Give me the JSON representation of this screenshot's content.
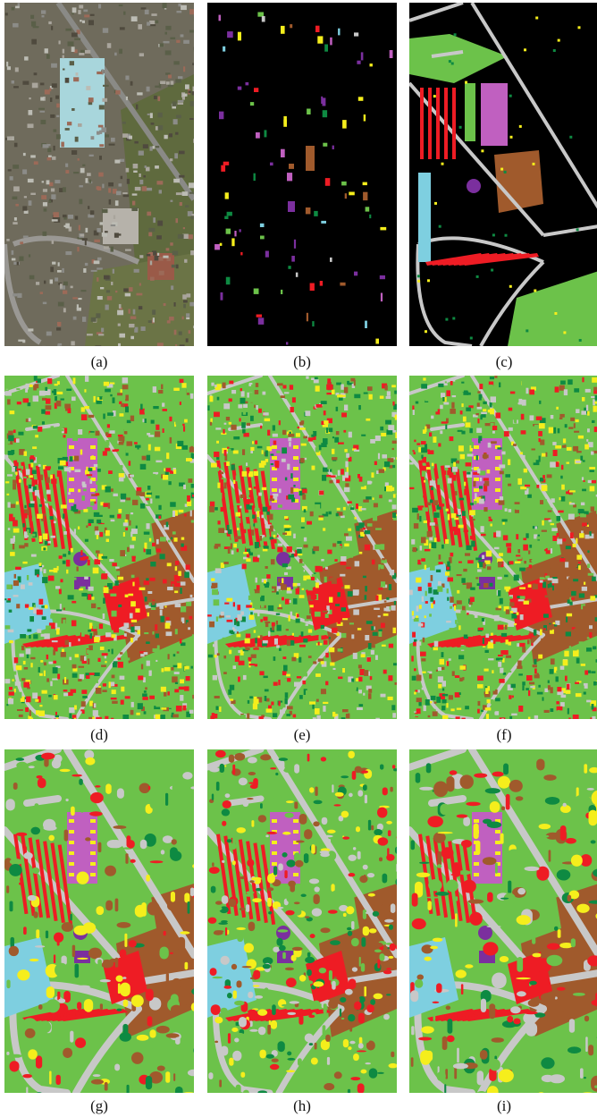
{
  "figure": {
    "panels": [
      {
        "id": "a",
        "label": "(a)",
        "kind": "rgb-image"
      },
      {
        "id": "b",
        "label": "(b)",
        "kind": "ground-truth-sparse"
      },
      {
        "id": "c",
        "label": "(c)",
        "kind": "ground-truth-full"
      },
      {
        "id": "d",
        "label": "(d)",
        "kind": "classification-map"
      },
      {
        "id": "e",
        "label": "(e)",
        "kind": "classification-map"
      },
      {
        "id": "f",
        "label": "(f)",
        "kind": "classification-map"
      },
      {
        "id": "g",
        "label": "(g)",
        "kind": "classification-map-smooth"
      },
      {
        "id": "h",
        "label": "(h)",
        "kind": "classification-map-smooth"
      },
      {
        "id": "i",
        "label": "(i)",
        "kind": "classification-map-smooth"
      }
    ]
  },
  "palette": {
    "red": "#ee1c24",
    "light_green": "#6cc24a",
    "dark_green": "#0e8a42",
    "gray": "#c8c8c8",
    "brown": "#a05a2c",
    "purple": "#7b2f9e",
    "magenta": "#c060c0",
    "cyan": "#7ecfe0",
    "yellow": "#f5ee1c",
    "black": "#000000"
  }
}
